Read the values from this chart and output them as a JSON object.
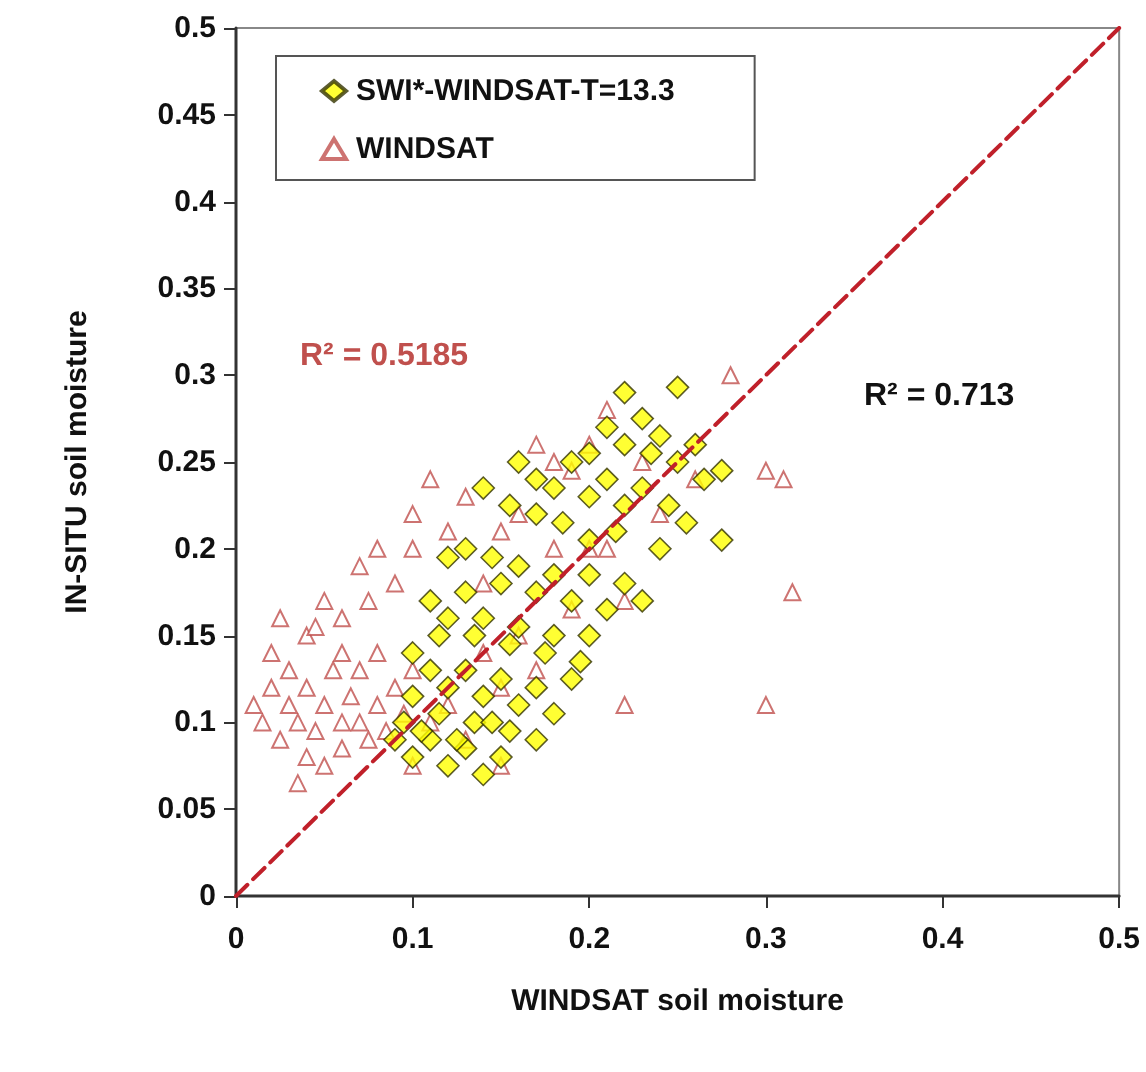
{
  "chart_data": {
    "type": "scatter",
    "xlabel": "WINDSAT soil moisture",
    "ylabel": "IN-SITU soil moisture",
    "xlim": [
      0,
      0.5
    ],
    "ylim": [
      0,
      0.5
    ],
    "xticks": [
      0,
      0.1,
      0.2,
      0.3,
      0.4,
      0.5
    ],
    "yticks": [
      0,
      0.05,
      0.1,
      0.15,
      0.2,
      0.25,
      0.3,
      0.35,
      0.4,
      0.45,
      0.5
    ],
    "grid": false,
    "legend": "top left",
    "annotations": [
      "R² = 0.5185",
      "R² = 0.713"
    ],
    "series": [
      {
        "name": "SWI*-WINDSAT-T=13.3",
        "color": "#ffff00",
        "marker": "diamond",
        "x": [
          0.25,
          0.22,
          0.23,
          0.21,
          0.24,
          0.26,
          0.275,
          0.265,
          0.25,
          0.235,
          0.22,
          0.2,
          0.19,
          0.21,
          0.23,
          0.245,
          0.22,
          0.2,
          0.18,
          0.17,
          0.16,
          0.275,
          0.255,
          0.24,
          0.215,
          0.2,
          0.185,
          0.17,
          0.155,
          0.14,
          0.13,
          0.12,
          0.145,
          0.16,
          0.18,
          0.2,
          0.22,
          0.23,
          0.21,
          0.19,
          0.17,
          0.15,
          0.13,
          0.11,
          0.12,
          0.14,
          0.16,
          0.18,
          0.2,
          0.195,
          0.175,
          0.155,
          0.135,
          0.115,
          0.1,
          0.11,
          0.13,
          0.15,
          0.17,
          0.19,
          0.18,
          0.16,
          0.14,
          0.12,
          0.1,
          0.095,
          0.115,
          0.135,
          0.155,
          0.17,
          0.15,
          0.13,
          0.11,
          0.1,
          0.12,
          0.14,
          0.105,
          0.125,
          0.145,
          0.09
        ],
        "values": [
          0.293,
          0.29,
          0.275,
          0.27,
          0.265,
          0.26,
          0.245,
          0.24,
          0.25,
          0.255,
          0.26,
          0.255,
          0.25,
          0.24,
          0.235,
          0.225,
          0.225,
          0.23,
          0.235,
          0.24,
          0.25,
          0.205,
          0.215,
          0.2,
          0.21,
          0.205,
          0.215,
          0.22,
          0.225,
          0.235,
          0.2,
          0.195,
          0.195,
          0.19,
          0.185,
          0.185,
          0.18,
          0.17,
          0.165,
          0.17,
          0.175,
          0.18,
          0.175,
          0.17,
          0.16,
          0.16,
          0.155,
          0.15,
          0.15,
          0.135,
          0.14,
          0.145,
          0.15,
          0.15,
          0.14,
          0.13,
          0.13,
          0.125,
          0.12,
          0.125,
          0.105,
          0.11,
          0.115,
          0.12,
          0.115,
          0.1,
          0.105,
          0.1,
          0.095,
          0.09,
          0.08,
          0.085,
          0.09,
          0.08,
          0.075,
          0.07,
          0.095,
          0.09,
          0.1,
          0.09
        ]
      },
      {
        "name": "WINDSAT",
        "color": "#c0504d",
        "marker": "triangle",
        "x": [
          0.01,
          0.015,
          0.02,
          0.025,
          0.03,
          0.03,
          0.035,
          0.04,
          0.04,
          0.045,
          0.05,
          0.05,
          0.055,
          0.06,
          0.06,
          0.065,
          0.07,
          0.07,
          0.075,
          0.08,
          0.08,
          0.085,
          0.09,
          0.095,
          0.1,
          0.02,
          0.025,
          0.04,
          0.05,
          0.06,
          0.07,
          0.08,
          0.075,
          0.09,
          0.1,
          0.11,
          0.1,
          0.12,
          0.13,
          0.14,
          0.15,
          0.16,
          0.17,
          0.18,
          0.19,
          0.2,
          0.21,
          0.23,
          0.24,
          0.26,
          0.28,
          0.3,
          0.31,
          0.315,
          0.3,
          0.22,
          0.2,
          0.18,
          0.16,
          0.14,
          0.12,
          0.11,
          0.13,
          0.15,
          0.1,
          0.035,
          0.045,
          0.06,
          0.15,
          0.17,
          0.19,
          0.21,
          0.22
        ],
        "values": [
          0.11,
          0.1,
          0.12,
          0.09,
          0.11,
          0.13,
          0.1,
          0.08,
          0.12,
          0.095,
          0.11,
          0.075,
          0.13,
          0.1,
          0.085,
          0.115,
          0.1,
          0.13,
          0.09,
          0.11,
          0.14,
          0.095,
          0.12,
          0.105,
          0.13,
          0.14,
          0.16,
          0.15,
          0.17,
          0.16,
          0.19,
          0.2,
          0.17,
          0.18,
          0.22,
          0.24,
          0.2,
          0.21,
          0.23,
          0.18,
          0.21,
          0.22,
          0.26,
          0.25,
          0.245,
          0.26,
          0.28,
          0.25,
          0.22,
          0.24,
          0.3,
          0.245,
          0.24,
          0.175,
          0.11,
          0.11,
          0.2,
          0.2,
          0.15,
          0.14,
          0.11,
          0.1,
          0.09,
          0.075,
          0.075,
          0.065,
          0.155,
          0.14,
          0.12,
          0.13,
          0.165,
          0.2,
          0.17
        ]
      },
      {
        "type": "line",
        "color": "#c0202a",
        "line_style": "dashed",
        "marker": "none",
        "x": [
          0,
          0.5
        ],
        "values": [
          0,
          0.5
        ]
      }
    ]
  }
}
